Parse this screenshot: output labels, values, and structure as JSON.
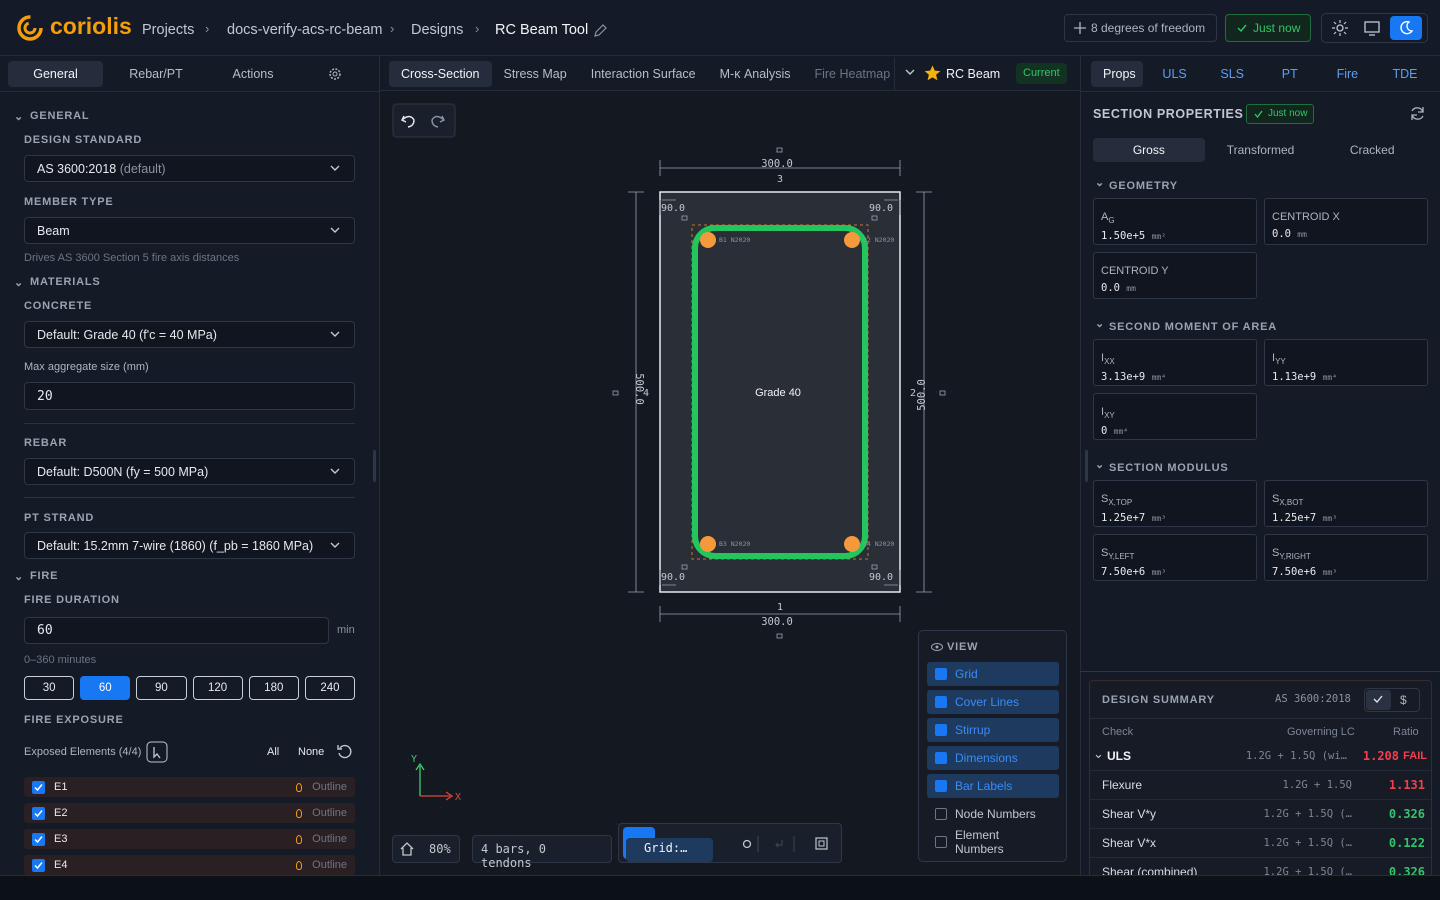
{
  "header": {
    "brand": "coriolis",
    "breadcrumbs": [
      "Projects",
      "docs-verify-acs-rc-beam",
      "Designs",
      "RC Beam Tool"
    ],
    "dof": "8 degrees of freedom",
    "saved": "Just now"
  },
  "left_panel": {
    "tabs": [
      "General",
      "Rebar/PT",
      "Actions"
    ],
    "general": {
      "heading": "GENERAL",
      "design_standard": {
        "label": "DESIGN STANDARD",
        "value": "AS 3600:2018",
        "note": "(default)"
      },
      "member_type": {
        "label": "MEMBER TYPE",
        "value": "Beam",
        "hint": "Drives AS 3600 Section 5 fire axis distances"
      }
    },
    "materials": {
      "heading": "MATERIALS",
      "concrete": {
        "label": "CONCRETE",
        "value": "Default: Grade 40 (f'c = 40 MPa)"
      },
      "aggregate": {
        "label": "Max aggregate size (mm)",
        "value": "20"
      },
      "rebar": {
        "label": "REBAR",
        "value": "Default: D500N (fy = 500 MPa)"
      },
      "pt_strand": {
        "label": "PT STRAND",
        "value": "Default: 15.2mm 7-wire (1860) (f_pb = 1860 MPa)"
      }
    },
    "fire": {
      "heading": "FIRE",
      "duration": {
        "label": "FIRE DURATION",
        "value": "60",
        "unit": "min",
        "hint": "0–360 minutes",
        "options": [
          "30",
          "60",
          "90",
          "120",
          "180",
          "240"
        ]
      },
      "exposure": {
        "label": "FIRE EXPOSURE",
        "elements_label": "Exposed Elements (4/4)",
        "all": "All",
        "none": "None",
        "elements": [
          {
            "name": "E1",
            "mode": "Outline",
            "checked": true
          },
          {
            "name": "E2",
            "mode": "Outline",
            "checked": true
          },
          {
            "name": "E3",
            "mode": "Outline",
            "checked": true
          },
          {
            "name": "E4",
            "mode": "Outline",
            "checked": true
          }
        ]
      }
    }
  },
  "canvas": {
    "tabs": [
      "Cross-Section",
      "Stress Map",
      "Interaction Surface",
      "M-κ Analysis",
      "Fire Heatmap"
    ],
    "design": "RC Beam",
    "status": "Current",
    "section": {
      "width": "300.0",
      "depth": "500.0",
      "edge_labels": [
        "1",
        "2",
        "3",
        "4"
      ],
      "covers": [
        "90.0",
        "90.0",
        "90.0",
        "90.0"
      ],
      "material": "Grade 40",
      "bars": [
        "B1 N2020",
        "B2 N2020",
        "B3 N2020",
        "B4 N2020"
      ]
    },
    "axes": {
      "x": "X",
      "y": "Y"
    },
    "zoom": "80%",
    "summary": "4 bars, 0 tendons",
    "grid_menu": "Grid:…",
    "view": {
      "heading": "VIEW",
      "items": [
        {
          "label": "Grid",
          "checked": true
        },
        {
          "label": "Cover Lines",
          "checked": true
        },
        {
          "label": "Stirrup",
          "checked": true
        },
        {
          "label": "Dimensions",
          "checked": true
        },
        {
          "label": "Bar Labels",
          "checked": true
        },
        {
          "label": "Node Numbers",
          "checked": false
        },
        {
          "label": "Element Numbers",
          "checked": false
        }
      ]
    }
  },
  "right_panel": {
    "tabs": [
      "Props",
      "ULS",
      "SLS",
      "PT",
      "Fire",
      "TDE"
    ],
    "title": "SECTION PROPERTIES",
    "updated": "Just now",
    "modes": [
      "Gross",
      "Transformed",
      "Cracked"
    ],
    "groups": [
      {
        "heading": "GEOMETRY",
        "items": [
          {
            "label": "A",
            "sub": "G",
            "value": "1.50e+5",
            "unit": "mm²"
          },
          {
            "label": "CENTROID X",
            "value": "0.0",
            "unit": "mm"
          },
          {
            "label": "CENTROID Y",
            "value": "0.0",
            "unit": "mm"
          }
        ]
      },
      {
        "heading": "SECOND MOMENT OF AREA",
        "items": [
          {
            "label": "I",
            "sub": "XX",
            "value": "3.13e+9",
            "unit": "mm⁴"
          },
          {
            "label": "I",
            "sub": "YY",
            "value": "1.13e+9",
            "unit": "mm⁴"
          },
          {
            "label": "I",
            "sub": "XY",
            "value": "0",
            "unit": "mm⁴"
          }
        ]
      },
      {
        "heading": "SECTION MODULUS",
        "items": [
          {
            "label": "S",
            "sub": "X,TOP",
            "value": "1.25e+7",
            "unit": "mm³"
          },
          {
            "label": "S",
            "sub": "X,BOT",
            "value": "1.25e+7",
            "unit": "mm³"
          },
          {
            "label": "S",
            "sub": "Y,LEFT",
            "value": "7.50e+6",
            "unit": "mm³"
          },
          {
            "label": "S",
            "sub": "Y,RIGHT",
            "value": "7.50e+6",
            "unit": "mm³"
          }
        ]
      }
    ],
    "design_summary": {
      "title": "DESIGN SUMMARY",
      "standard": "AS 3600:2018",
      "currency": "$",
      "columns": [
        "Check",
        "Governing LC",
        "Ratio"
      ],
      "rows": [
        {
          "check": "ULS",
          "lc": "1.2G + 1.5Q (wi…",
          "ratio": "1.208",
          "status": "FAIL"
        },
        {
          "check": "Flexure",
          "lc": "1.2G + 1.5Q",
          "ratio": "1.131"
        },
        {
          "check": "Shear V*y",
          "lc": "1.2G + 1.5Q (…",
          "ratio": "0.326"
        },
        {
          "check": "Shear V*x",
          "lc": "1.2G + 1.5Q (…",
          "ratio": "0.122"
        },
        {
          "check": "Shear (combined)",
          "lc": "1.2G + 1.5Q (…",
          "ratio": "0.326"
        }
      ]
    }
  }
}
